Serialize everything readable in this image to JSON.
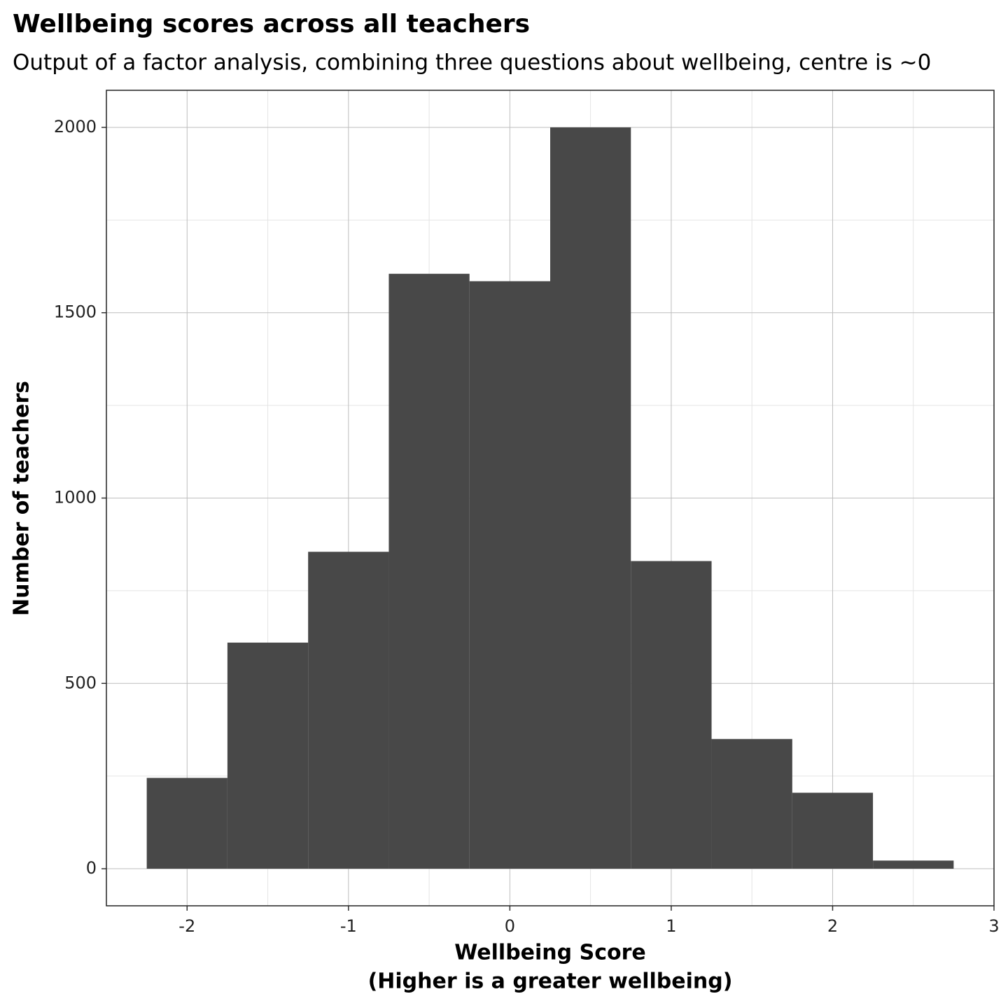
{
  "chart_data": {
    "type": "histogram",
    "title": "Wellbeing scores across all teachers",
    "subtitle": "Output of a factor analysis, combining three questions about wellbeing, centre is ~0",
    "xlabel": [
      "Wellbeing Score",
      "(Higher is a greater wellbeing)"
    ],
    "ylabel": "Number of teachers",
    "bins": [
      -2.25,
      -1.75,
      -1.25,
      -0.75,
      -0.25,
      0.25,
      0.75,
      1.25,
      1.75,
      2.25,
      2.75
    ],
    "values": [
      245,
      610,
      855,
      1605,
      1585,
      2000,
      830,
      350,
      205,
      22
    ],
    "color": "#484848",
    "xlim": [
      -2.5,
      3
    ],
    "xticks": [
      -2,
      -1,
      0,
      1,
      2,
      3
    ],
    "ylim": [
      -100,
      2100
    ],
    "yticks": [
      0,
      500,
      1000,
      1500,
      2000
    ],
    "grid": true
  }
}
